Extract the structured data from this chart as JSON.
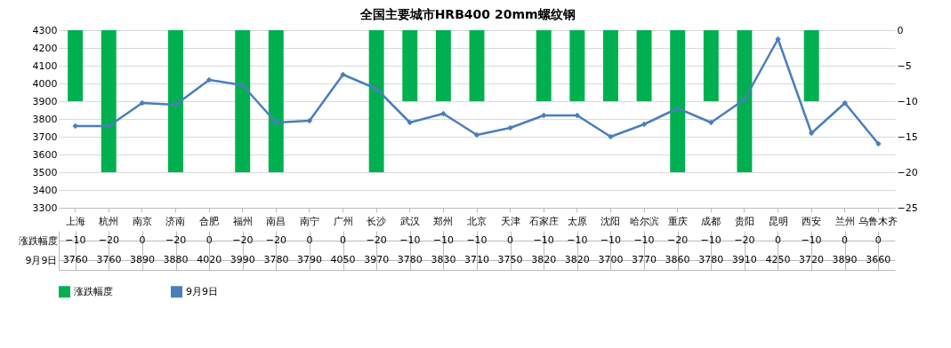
{
  "chart_data": {
    "type": "bar",
    "title": "全国主要城市HRB400 20mm螺纹钢",
    "categories": [
      "上海",
      "杭州",
      "南京",
      "济南",
      "合肥",
      "福州",
      "南昌",
      "南宁",
      "广州",
      "长沙",
      "武汉",
      "郑州",
      "北京",
      "天津",
      "石家庄",
      "太原",
      "沈阳",
      "哈尔滨",
      "重庆",
      "成都",
      "贵阳",
      "昆明",
      "西安",
      "兰州",
      "乌鲁木齐"
    ],
    "series": [
      {
        "name": "涨跌幅度",
        "axis": "y2",
        "color": "#00b050",
        "values": [
          -10,
          -20,
          0,
          -20,
          0,
          -20,
          -20,
          0,
          0,
          -20,
          -10,
          -10,
          -10,
          0,
          -10,
          -10,
          -10,
          -10,
          -20,
          -10,
          -20,
          0,
          -10,
          0,
          0
        ]
      },
      {
        "name": "9月9日",
        "type": "line",
        "color": "#4a7ebb",
        "values": [
          3760,
          3760,
          3890,
          3880,
          4020,
          3990,
          3780,
          3790,
          4050,
          3970,
          3780,
          3830,
          3710,
          3750,
          3820,
          3820,
          3700,
          3770,
          3860,
          3780,
          3910,
          4250,
          3720,
          3890,
          3660
        ]
      }
    ],
    "ylim": [
      3300,
      4300
    ],
    "yticks": [
      3300,
      3400,
      3500,
      3600,
      3700,
      3800,
      3900,
      4000,
      4100,
      4200,
      4300
    ],
    "y2lim": [
      -25,
      0
    ],
    "y2ticks": [
      -25,
      -20,
      -15,
      -10,
      -5,
      0
    ],
    "grid": "y",
    "legend": "bottom",
    "marker": "diamond",
    "data_labels": true
  }
}
